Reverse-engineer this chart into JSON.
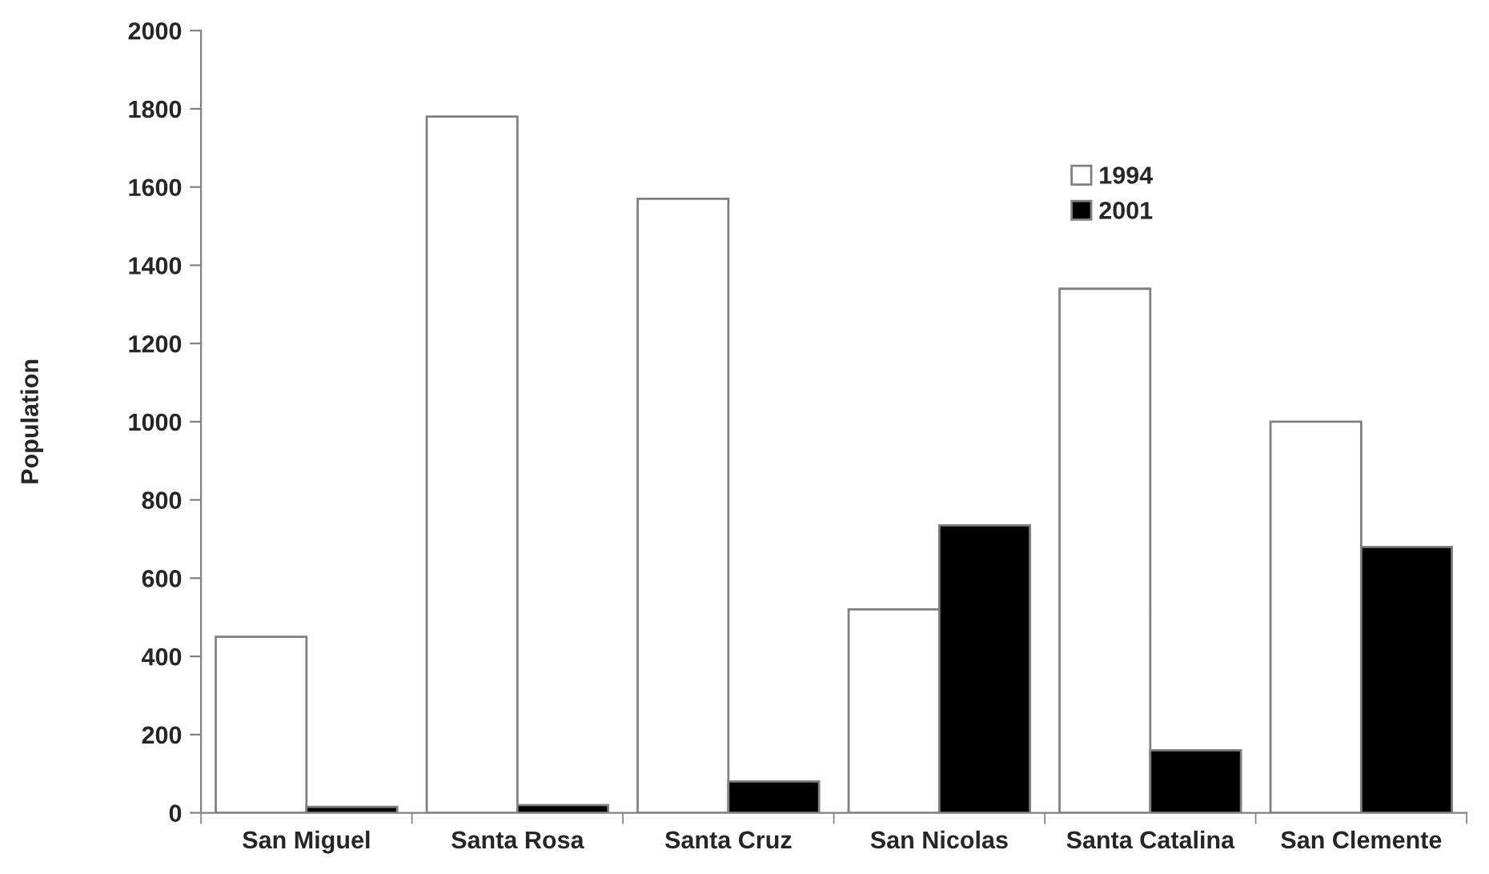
{
  "chart_data": {
    "type": "bar",
    "ylabel": "Population",
    "categories": [
      "San Miguel",
      "Santa Rosa",
      "Santa Cruz",
      "San Nicolas",
      "Santa Catalina",
      "San Clemente"
    ],
    "series": [
      {
        "name": "1994",
        "color": "#ffffff",
        "values": [
          450,
          1780,
          1570,
          520,
          1340,
          1000
        ]
      },
      {
        "name": "2001",
        "color": "#000000",
        "values": [
          15,
          20,
          80,
          735,
          160,
          680
        ]
      }
    ],
    "ylim": [
      0,
      2000
    ],
    "yticks": [
      0,
      200,
      400,
      600,
      800,
      1000,
      1200,
      1400,
      1600,
      1800,
      2000
    ],
    "grid": false,
    "legend": "top"
  }
}
